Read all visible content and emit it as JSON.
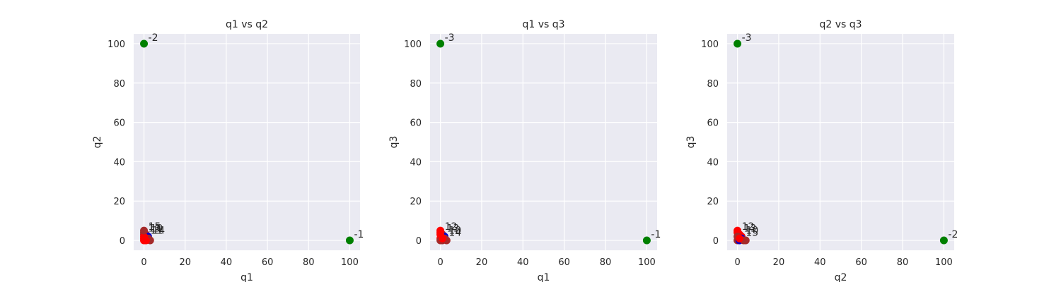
{
  "colors": {
    "plot_bg": "#EAEAF2",
    "grid": "#FFFFFF",
    "reference": "#008000",
    "red": "#FF0000",
    "brown": "#A52A2A",
    "blue": "#0000CD"
  },
  "chart_data": [
    {
      "type": "scatter",
      "title": "q1 vs q2",
      "xlabel": "q1",
      "ylabel": "q2",
      "xlim": [
        -5,
        105
      ],
      "ylim": [
        -5,
        105
      ],
      "xticks": [
        0,
        20,
        40,
        60,
        80,
        100
      ],
      "yticks": [
        0,
        20,
        40,
        60,
        80,
        100
      ],
      "grid": true,
      "points": [
        {
          "x": 0,
          "y": 100,
          "label": "-2",
          "color": "green"
        },
        {
          "x": 100,
          "y": 0,
          "label": "-1",
          "color": "green"
        },
        {
          "x": 0,
          "y": 4,
          "label": "15",
          "color": "brown"
        },
        {
          "x": 0,
          "y": 3,
          "label": "13",
          "color": "brown"
        },
        {
          "x": 1,
          "y": 3,
          "label": "10",
          "color": "brown"
        },
        {
          "x": 1,
          "y": 2,
          "label": "11",
          "color": "blue"
        },
        {
          "x": 2,
          "y": 2,
          "label": "14",
          "color": "blue"
        },
        {
          "x": 2,
          "y": 1,
          "label": "",
          "color": "brown"
        },
        {
          "x": 3,
          "y": 0,
          "label": "",
          "color": "brown"
        },
        {
          "x": 0,
          "y": 1,
          "label": "",
          "color": "red"
        },
        {
          "x": 0,
          "y": 2,
          "label": "",
          "color": "red"
        },
        {
          "x": 0,
          "y": 0,
          "label": "",
          "color": "red"
        },
        {
          "x": 1,
          "y": 0,
          "label": "",
          "color": "red"
        },
        {
          "x": 0,
          "y": 5,
          "label": "",
          "color": "brown"
        }
      ]
    },
    {
      "type": "scatter",
      "title": "q1 vs q3",
      "xlabel": "q1",
      "ylabel": "q3",
      "xlim": [
        -5,
        105
      ],
      "ylim": [
        -5,
        105
      ],
      "xticks": [
        0,
        20,
        40,
        60,
        80,
        100
      ],
      "yticks": [
        0,
        20,
        40,
        60,
        80,
        100
      ],
      "grid": true,
      "points": [
        {
          "x": 0,
          "y": 100,
          "label": "-3",
          "color": "green"
        },
        {
          "x": 100,
          "y": 0,
          "label": "-1",
          "color": "green"
        },
        {
          "x": 0,
          "y": 4,
          "label": "12",
          "color": "red"
        },
        {
          "x": 1,
          "y": 3,
          "label": "13",
          "color": "brown"
        },
        {
          "x": 2,
          "y": 2,
          "label": "10",
          "color": "blue"
        },
        {
          "x": 2,
          "y": 1,
          "label": "14",
          "color": "brown"
        },
        {
          "x": 0,
          "y": 3,
          "label": "",
          "color": "red"
        },
        {
          "x": 0,
          "y": 5,
          "label": "",
          "color": "red"
        },
        {
          "x": 0,
          "y": 1,
          "label": "",
          "color": "red"
        },
        {
          "x": 0,
          "y": 0,
          "label": "",
          "color": "brown"
        },
        {
          "x": 1,
          "y": 0,
          "label": "",
          "color": "brown"
        },
        {
          "x": 3,
          "y": 0,
          "label": "",
          "color": "brown"
        },
        {
          "x": 1,
          "y": 1,
          "label": "",
          "color": "red"
        }
      ]
    },
    {
      "type": "scatter",
      "title": "q2 vs q3",
      "xlabel": "q2",
      "ylabel": "q3",
      "xlim": [
        -5,
        105
      ],
      "ylim": [
        -5,
        105
      ],
      "xticks": [
        0,
        20,
        40,
        60,
        80,
        100
      ],
      "yticks": [
        0,
        20,
        40,
        60,
        80,
        100
      ],
      "grid": true,
      "points": [
        {
          "x": 0,
          "y": 100,
          "label": "-3",
          "color": "green"
        },
        {
          "x": 100,
          "y": 0,
          "label": "-2",
          "color": "green"
        },
        {
          "x": 0,
          "y": 4,
          "label": "12",
          "color": "red"
        },
        {
          "x": 1,
          "y": 3,
          "label": "13",
          "color": "red"
        },
        {
          "x": 2,
          "y": 2,
          "label": "10",
          "color": "red"
        },
        {
          "x": 2,
          "y": 1,
          "label": "15",
          "color": "blue"
        },
        {
          "x": 0,
          "y": 5,
          "label": "",
          "color": "red"
        },
        {
          "x": 0,
          "y": 2,
          "label": "",
          "color": "brown"
        },
        {
          "x": 0,
          "y": 0,
          "label": "",
          "color": "brown"
        },
        {
          "x": 1,
          "y": 0,
          "label": "",
          "color": "blue"
        },
        {
          "x": 3,
          "y": 0,
          "label": "",
          "color": "brown"
        },
        {
          "x": 4,
          "y": 0,
          "label": "",
          "color": "brown"
        },
        {
          "x": 1,
          "y": 1,
          "label": "",
          "color": "red"
        }
      ]
    }
  ]
}
